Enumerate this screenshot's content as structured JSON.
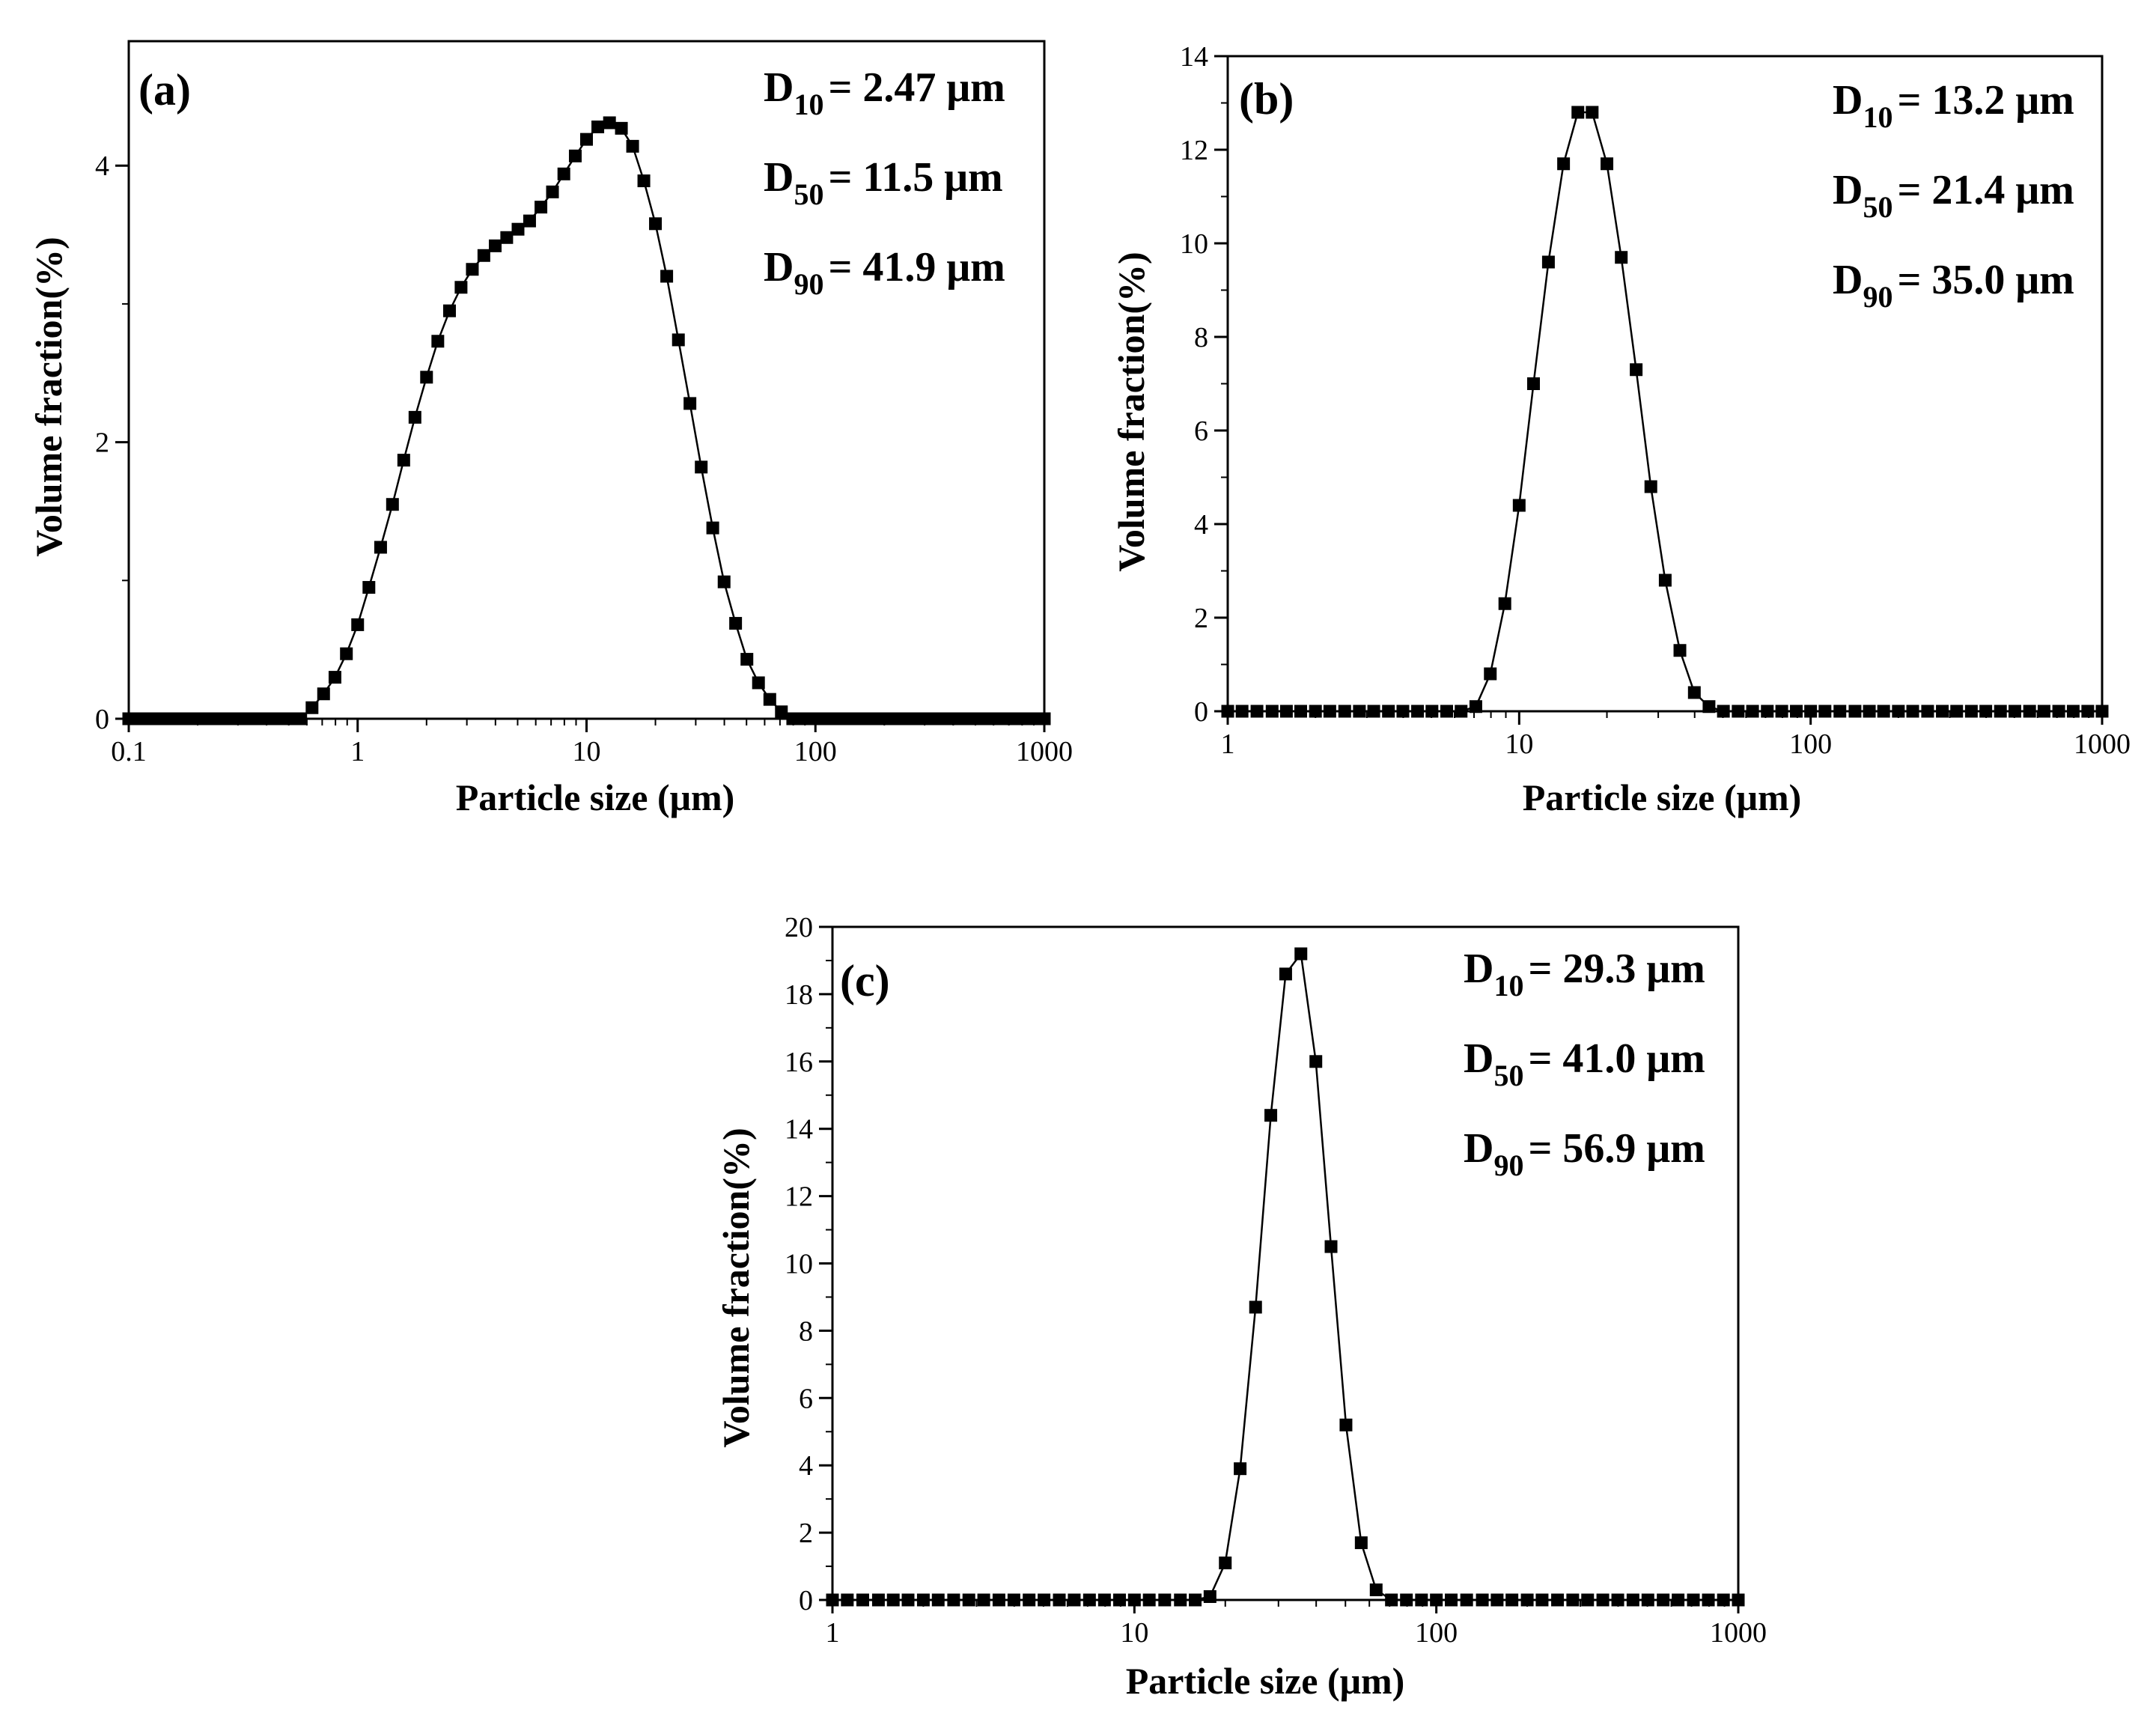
{
  "chart_data": [
    {
      "type": "scatter",
      "panel_label": "(a)",
      "x_scale": "log",
      "xlabel": "Particle size (μm)",
      "ylabel": "Volume fraction(%)",
      "xlim": [
        0.1,
        1000
      ],
      "ylim": [
        0,
        4.9
      ],
      "xticks": [
        "0.1",
        "1",
        "10",
        "100",
        "1000"
      ],
      "yticks": [
        "0",
        "2",
        "4"
      ],
      "ytick_values": [
        0,
        2,
        4
      ],
      "stats": [
        {
          "sym": "D",
          "sub": "10",
          "text": "= 2.47 μm"
        },
        {
          "sym": "D",
          "sub": "50",
          "text": "= 11.5 μm"
        },
        {
          "sym": "D",
          "sub": "90",
          "text": "= 41.9 μm"
        }
      ],
      "x": [
        0.1,
        0.112,
        0.126,
        0.142,
        0.159,
        0.178,
        0.2,
        0.224,
        0.252,
        0.283,
        0.317,
        0.356,
        0.399,
        0.448,
        0.502,
        0.564,
        0.632,
        0.71,
        0.796,
        0.893,
        1.0,
        1.12,
        1.26,
        1.42,
        1.59,
        1.78,
        2.0,
        2.24,
        2.52,
        2.83,
        3.17,
        3.56,
        3.99,
        4.48,
        5.02,
        5.64,
        6.32,
        7.1,
        7.96,
        8.93,
        10.0,
        11.2,
        12.6,
        14.2,
        15.9,
        17.8,
        20.0,
        22.4,
        25.2,
        28.3,
        31.7,
        35.6,
        39.9,
        44.8,
        50.2,
        56.4,
        63.2,
        71.0,
        79.6,
        89.3,
        100,
        112,
        126,
        142,
        159,
        178,
        200,
        224,
        252,
        283,
        317,
        356,
        399,
        448,
        502,
        564,
        632,
        710,
        796,
        893,
        1000
      ],
      "y": [
        0,
        0,
        0,
        0,
        0,
        0,
        0,
        0,
        0,
        0,
        0,
        0,
        0,
        0,
        0,
        0,
        0.08,
        0.18,
        0.3,
        0.47,
        0.68,
        0.95,
        1.24,
        1.55,
        1.87,
        2.18,
        2.47,
        2.73,
        2.95,
        3.12,
        3.25,
        3.35,
        3.42,
        3.48,
        3.54,
        3.6,
        3.7,
        3.81,
        3.94,
        4.07,
        4.19,
        4.28,
        4.31,
        4.27,
        4.14,
        3.89,
        3.58,
        3.2,
        2.74,
        2.28,
        1.82,
        1.38,
        0.99,
        0.69,
        0.43,
        0.26,
        0.14,
        0.05,
        0,
        0,
        0,
        0,
        0,
        0,
        0,
        0,
        0,
        0,
        0,
        0,
        0,
        0,
        0,
        0,
        0,
        0,
        0,
        0,
        0,
        0,
        0
      ]
    },
    {
      "type": "scatter",
      "panel_label": "(b)",
      "x_scale": "log",
      "xlabel": "Particle size (μm)",
      "ylabel": "Volume fraction(%)",
      "xlim": [
        1,
        1000
      ],
      "ylim": [
        0,
        14
      ],
      "xticks": [
        "1",
        "10",
        "100",
        "1000"
      ],
      "yticks": [
        "0",
        "2",
        "4",
        "6",
        "8",
        "10",
        "12",
        "14"
      ],
      "ytick_values": [
        0,
        2,
        4,
        6,
        8,
        10,
        12,
        14
      ],
      "stats": [
        {
          "sym": "D",
          "sub": "10",
          "text": "= 13.2 μm"
        },
        {
          "sym": "D",
          "sub": "50",
          "text": "= 21.4 μm"
        },
        {
          "sym": "D",
          "sub": "90",
          "text": "= 35.0 μm"
        }
      ],
      "x": [
        1.0,
        1.12,
        1.26,
        1.42,
        1.59,
        1.78,
        2.0,
        2.24,
        2.52,
        2.83,
        3.17,
        3.56,
        3.99,
        4.48,
        5.02,
        5.64,
        6.32,
        7.1,
        7.96,
        8.93,
        10.0,
        11.2,
        12.6,
        14.2,
        15.9,
        17.8,
        20.0,
        22.4,
        25.2,
        28.3,
        31.7,
        35.6,
        39.9,
        44.8,
        50.2,
        56.4,
        63.2,
        71.0,
        79.6,
        89.3,
        100,
        112,
        126,
        142,
        159,
        178,
        200,
        224,
        252,
        283,
        317,
        356,
        399,
        448,
        502,
        564,
        632,
        710,
        796,
        893,
        1000
      ],
      "y": [
        0,
        0,
        0,
        0,
        0,
        0,
        0,
        0,
        0,
        0,
        0,
        0,
        0,
        0,
        0,
        0,
        0,
        0.1,
        0.8,
        2.3,
        4.4,
        7.0,
        9.6,
        11.7,
        12.8,
        12.8,
        11.7,
        9.7,
        7.3,
        4.8,
        2.8,
        1.3,
        0.4,
        0.1,
        0,
        0,
        0,
        0,
        0,
        0,
        0,
        0,
        0,
        0,
        0,
        0,
        0,
        0,
        0,
        0,
        0,
        0,
        0,
        0,
        0,
        0,
        0,
        0,
        0,
        0,
        0
      ]
    },
    {
      "type": "scatter",
      "panel_label": "(c)",
      "x_scale": "log",
      "xlabel": "Particle size (μm)",
      "ylabel": "Volume fraction(%)",
      "xlim": [
        1,
        1000
      ],
      "ylim": [
        0,
        20
      ],
      "xticks": [
        "1",
        "10",
        "100",
        "1000"
      ],
      "yticks": [
        "0",
        "2",
        "4",
        "6",
        "8",
        "10",
        "12",
        "14",
        "16",
        "18",
        "20"
      ],
      "ytick_values": [
        0,
        2,
        4,
        6,
        8,
        10,
        12,
        14,
        16,
        18,
        20
      ],
      "stats": [
        {
          "sym": "D",
          "sub": "10",
          "text": "= 29.3 μm"
        },
        {
          "sym": "D",
          "sub": "50",
          "text": "= 41.0 μm"
        },
        {
          "sym": "D",
          "sub": "90",
          "text": "= 56.9 μm"
        }
      ],
      "x": [
        1.0,
        1.12,
        1.26,
        1.42,
        1.59,
        1.78,
        2.0,
        2.24,
        2.52,
        2.83,
        3.17,
        3.56,
        3.99,
        4.48,
        5.02,
        5.64,
        6.32,
        7.1,
        7.96,
        8.93,
        10.0,
        11.2,
        12.6,
        14.2,
        15.9,
        17.8,
        20.0,
        22.4,
        25.2,
        28.3,
        31.7,
        35.6,
        39.9,
        44.8,
        50.2,
        56.4,
        63.2,
        71.0,
        79.6,
        89.3,
        100,
        112,
        126,
        142,
        159,
        178,
        200,
        224,
        252,
        283,
        317,
        356,
        399,
        448,
        502,
        564,
        632,
        710,
        796,
        893,
        1000
      ],
      "y": [
        0,
        0,
        0,
        0,
        0,
        0,
        0,
        0,
        0,
        0,
        0,
        0,
        0,
        0,
        0,
        0,
        0,
        0,
        0,
        0,
        0,
        0,
        0,
        0,
        0,
        0.1,
        1.1,
        3.9,
        8.7,
        14.4,
        18.6,
        19.2,
        16.0,
        10.5,
        5.2,
        1.7,
        0.3,
        0,
        0,
        0,
        0,
        0,
        0,
        0,
        0,
        0,
        0,
        0,
        0,
        0,
        0,
        0,
        0,
        0,
        0,
        0,
        0,
        0,
        0,
        0,
        0
      ]
    }
  ]
}
